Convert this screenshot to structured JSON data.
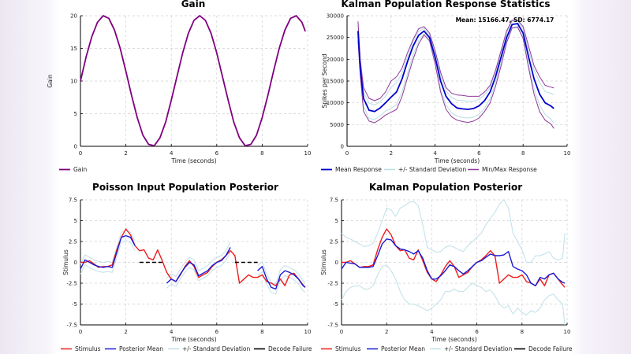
{
  "chart_data": [
    {
      "type": "line",
      "title": "Gain",
      "xlabel": "Time (seconds)",
      "ylabel": "Gain",
      "xlim": [
        0,
        10
      ],
      "ylim": [
        0,
        20
      ],
      "xticks": [
        "0",
        "2",
        "4",
        "6",
        "8",
        "10"
      ],
      "yticks": [
        "0",
        "5",
        "10",
        "15",
        "20"
      ],
      "grid": true,
      "legend": "bottom-left",
      "x": [
        0,
        0.25,
        0.5,
        0.75,
        1,
        1.25,
        1.5,
        1.75,
        2,
        2.25,
        2.5,
        2.75,
        3,
        3.25,
        3.5,
        3.75,
        4,
        4.25,
        4.5,
        4.75,
        5,
        5.25,
        5.5,
        5.75,
        6,
        6.25,
        6.5,
        6.75,
        7,
        7.25,
        7.5,
        7.75,
        8,
        8.25,
        8.5,
        8.75,
        9,
        9.25,
        9.5,
        9.75,
        9.9
      ],
      "series": [
        {
          "name": "Gain",
          "color": "#800080",
          "width": 1.8,
          "y": [
            10,
            13.7,
            16.8,
            19.0,
            20.0,
            19.6,
            17.8,
            15.0,
            11.5,
            7.8,
            4.4,
            1.7,
            0.3,
            0.1,
            1.3,
            3.7,
            7.1,
            10.7,
            14.3,
            17.3,
            19.3,
            20.0,
            19.3,
            17.3,
            14.3,
            10.7,
            7.1,
            3.7,
            1.3,
            0.1,
            0.3,
            1.7,
            4.4,
            7.8,
            11.5,
            15.0,
            17.8,
            19.6,
            20.0,
            19.0,
            17.6
          ]
        }
      ]
    },
    {
      "type": "line",
      "title": "Kalman Population Response Statistics",
      "xlabel": "Time (seconds)",
      "ylabel": "Spikes per Second",
      "annotation": "Mean: 15166.47, SD: 6774.17",
      "xlim": [
        0,
        10
      ],
      "ylim": [
        0,
        30000
      ],
      "xticks": [
        "0",
        "2",
        "4",
        "6",
        "8",
        "10"
      ],
      "yticks": [
        "0",
        "5000",
        "10000",
        "15000",
        "20000",
        "25000",
        "30000"
      ],
      "grid": true,
      "legend": "bottom",
      "x": [
        0.5,
        0.6,
        0.75,
        1,
        1.25,
        1.5,
        1.75,
        2,
        2.25,
        2.5,
        2.75,
        3,
        3.25,
        3.5,
        3.75,
        4,
        4.25,
        4.5,
        4.75,
        5,
        5.25,
        5.5,
        5.75,
        6,
        6.25,
        6.5,
        6.75,
        7,
        7.25,
        7.5,
        7.75,
        8,
        8.25,
        8.5,
        8.75,
        9,
        9.25,
        9.4
      ],
      "series": [
        {
          "name": "Mean Response",
          "color": "#0000cc",
          "width": 1.8,
          "y": [
            26500,
            18000,
            11000,
            8300,
            8000,
            8800,
            10000,
            11300,
            12500,
            15500,
            19500,
            23000,
            25500,
            26500,
            25000,
            20500,
            15000,
            11500,
            9800,
            8800,
            8600,
            8500,
            8700,
            9300,
            10500,
            12500,
            16000,
            20500,
            25000,
            28000,
            28200,
            26000,
            20500,
            15500,
            12000,
            10000,
            9300,
            8700
          ]
        },
        {
          "name": "+/- Standard Deviation",
          "color": "#b8dde3",
          "width": 1,
          "upper": [
            27800,
            19300,
            12500,
            9900,
            9500,
            10200,
            11500,
            13600,
            14600,
            16800,
            20600,
            24000,
            26400,
            27100,
            25600,
            21400,
            16200,
            12700,
            11200,
            10600,
            10500,
            10300,
            10400,
            10800,
            11800,
            13500,
            17000,
            21500,
            26000,
            28700,
            28700,
            27000,
            22000,
            17500,
            14700,
            12600,
            12200,
            11800
          ],
          "lower": [
            25300,
            16800,
            9200,
            6400,
            6200,
            7000,
            8100,
            8700,
            9600,
            12600,
            16800,
            21000,
            24200,
            25900,
            24500,
            19400,
            13200,
            9500,
            7700,
            6900,
            6600,
            6500,
            6700,
            7400,
            8700,
            11000,
            14700,
            19300,
            24200,
            27300,
            27500,
            25000,
            18700,
            13200,
            9500,
            7300,
            6300,
            5300
          ]
        },
        {
          "name": "Min/Max Response",
          "color": "#8e3a9a",
          "width": 1,
          "upper": [
            28700,
            20000,
            13500,
            11000,
            10500,
            11000,
            12500,
            15000,
            16000,
            18000,
            21500,
            24500,
            27000,
            27500,
            26000,
            22000,
            17000,
            13500,
            12200,
            11800,
            11700,
            11500,
            11500,
            11500,
            12500,
            14000,
            17500,
            22000,
            26500,
            29000,
            29000,
            27500,
            23000,
            18500,
            16000,
            14000,
            13600,
            13400
          ],
          "lower": [
            24300,
            16500,
            8000,
            5800,
            5400,
            6200,
            7200,
            7800,
            8500,
            11500,
            15800,
            20000,
            23500,
            25600,
            24200,
            19000,
            12500,
            8500,
            6800,
            6000,
            5700,
            5500,
            5800,
            6500,
            8000,
            10000,
            13800,
            18500,
            23800,
            27200,
            27400,
            24800,
            18000,
            12000,
            8000,
            6000,
            5200,
            4100
          ]
        }
      ]
    },
    {
      "type": "line",
      "title": "Poisson Input Population Posterior",
      "xlabel": "Time (seconds)",
      "ylabel": "Stimulus",
      "xlim": [
        0,
        10
      ],
      "ylim": [
        -7.5,
        7.5
      ],
      "xticks": [
        "0",
        "2",
        "4",
        "6",
        "8",
        "10"
      ],
      "yticks": [
        "-7.5",
        "-5",
        "-2.5",
        "0",
        "2.5",
        "5",
        "7.5"
      ],
      "grid": true,
      "legend": "bottom",
      "x": [
        0,
        0.2,
        0.4,
        0.6,
        0.8,
        1,
        1.2,
        1.4,
        1.6,
        1.8,
        2,
        2.2,
        2.4,
        2.6,
        2.8,
        3,
        3.2,
        3.4,
        3.6,
        3.8,
        4,
        4.2,
        4.4,
        4.6,
        4.8,
        5,
        5.2,
        5.4,
        5.6,
        5.8,
        6,
        6.2,
        6.4,
        6.6,
        6.8,
        7,
        7.2,
        7.4,
        7.6,
        7.8,
        8,
        8.2,
        8.4,
        8.6,
        8.8,
        9,
        9.2,
        9.4,
        9.6,
        9.8,
        9.9
      ],
      "series": [
        {
          "name": "Stimulus",
          "color": "#ee1c1c",
          "width": 1.4,
          "y": [
            0,
            0,
            0.2,
            -0.2,
            -0.6,
            -0.5,
            -0.5,
            -0.3,
            1.5,
            3.0,
            4.0,
            3.3,
            2.0,
            1.4,
            1.5,
            0.5,
            0.3,
            1.5,
            0.2,
            -1.2,
            -2.0,
            -2.3,
            -1.5,
            -0.5,
            0.2,
            -0.5,
            -1.8,
            -1.5,
            -1.2,
            -0.5,
            0,
            0.3,
            0.8,
            1.4,
            0.8,
            -2.5,
            -2.0,
            -1.5,
            -1.8,
            -1.8,
            -1.5,
            -2.3,
            -2.5,
            -2.8,
            -2.0,
            -2.8,
            -1.5,
            -1.3,
            -2.0,
            -2.7,
            -3.0
          ]
        },
        {
          "name": "Posterior Mean",
          "color": "#1a1ad6",
          "width": 1.4,
          "y": [
            -0.8,
            0.3,
            0,
            -0.3,
            -0.5,
            -0.6,
            -0.5,
            -0.6,
            1.2,
            3.0,
            3.2,
            3.0,
            2.0,
            null,
            null,
            null,
            null,
            null,
            null,
            -2.5,
            -2.0,
            -2.3,
            -1.4,
            -0.6,
            0,
            -0.3,
            -1.6,
            -1.3,
            -1.0,
            -0.4,
            0,
            0.2,
            0.8,
            1.8,
            null,
            null,
            null,
            null,
            null,
            -1.0,
            -0.5,
            -2.0,
            -3.0,
            -3.2,
            -1.5,
            -1.0,
            -1.2,
            -1.5,
            -2.0,
            -2.8,
            -3.0
          ]
        },
        {
          "name": "+/- Standard Deviation",
          "color": "#bfe0e8",
          "width": 1,
          "std_of": 1,
          "std": 0.6
        },
        {
          "name": "Decode Failure",
          "color": "#000000",
          "width": 1.6,
          "dashed": true,
          "segments": [
            [
              2.6,
              3.6
            ],
            [
              6.8,
              7.8
            ]
          ],
          "level": 0
        }
      ]
    },
    {
      "type": "line",
      "title": "Kalman Population Posterior",
      "xlabel": "Time (seconds)",
      "ylabel": "Stimulus",
      "xlim": [
        0,
        10
      ],
      "ylim": [
        -7.5,
        7.5
      ],
      "xticks": [
        "0",
        "2",
        "4",
        "6",
        "8",
        "10"
      ],
      "yticks": [
        "-7.5",
        "-5",
        "-2.5",
        "0",
        "2.5",
        "5",
        "7.5"
      ],
      "grid": true,
      "legend": "bottom",
      "x": [
        0,
        0.2,
        0.4,
        0.6,
        0.8,
        1,
        1.2,
        1.4,
        1.6,
        1.8,
        2,
        2.2,
        2.4,
        2.6,
        2.8,
        3,
        3.2,
        3.4,
        3.6,
        3.8,
        4,
        4.2,
        4.4,
        4.6,
        4.8,
        5,
        5.2,
        5.4,
        5.6,
        5.8,
        6,
        6.2,
        6.4,
        6.6,
        6.8,
        7,
        7.2,
        7.4,
        7.6,
        7.8,
        8,
        8.2,
        8.4,
        8.6,
        8.8,
        9,
        9.2,
        9.4,
        9.6,
        9.8,
        9.9
      ],
      "series": [
        {
          "name": "Stimulus",
          "color": "#ee1c1c",
          "width": 1.4,
          "y": [
            0,
            0,
            0.2,
            -0.2,
            -0.6,
            -0.5,
            -0.5,
            -0.3,
            1.5,
            3.0,
            4.0,
            3.3,
            2.0,
            1.4,
            1.5,
            0.5,
            0.3,
            1.5,
            0.2,
            -1.2,
            -2.0,
            -2.3,
            -1.5,
            -0.5,
            0.2,
            -0.5,
            -1.8,
            -1.5,
            -1.2,
            -0.5,
            0,
            0.3,
            0.8,
            1.4,
            0.8,
            -2.5,
            -2.0,
            -1.5,
            -1.8,
            -1.8,
            -1.5,
            -2.3,
            -2.5,
            -2.8,
            -2.0,
            -2.8,
            -1.5,
            -1.3,
            -2.0,
            -2.7,
            -3.0
          ]
        },
        {
          "name": "Posterior Mean",
          "color": "#1a1ad6",
          "width": 1.4,
          "y": [
            -0.8,
            0,
            -0.1,
            -0.2,
            -0.6,
            -0.6,
            -0.6,
            -0.5,
            0.8,
            2.2,
            2.8,
            2.7,
            2.0,
            1.6,
            1.5,
            1.3,
            1.0,
            1.4,
            0.5,
            -1.0,
            -2.0,
            -2.0,
            -1.6,
            -1.0,
            -0.3,
            -0.5,
            -1.0,
            -1.4,
            -1.0,
            -0.5,
            0,
            0.2,
            0.6,
            1.0,
            0.8,
            0.8,
            0.9,
            1.3,
            -0.5,
            -0.8,
            -1.0,
            -1.5,
            -2.5,
            -2.8,
            -1.8,
            -2.0,
            -1.5,
            -1.3,
            -2.0,
            -2.4,
            -2.5
          ]
        },
        {
          "name": "+/- Standard Deviation",
          "color": "#bfe0e8",
          "width": 1,
          "upper": [
            3.5,
            3.0,
            2.8,
            2.5,
            2.2,
            1.9,
            2.0,
            2.3,
            3.5,
            5.0,
            6.5,
            6.3,
            5.5,
            6.5,
            6.8,
            7.2,
            7.3,
            6.8,
            4.5,
            1.8,
            1.5,
            1.2,
            1.3,
            1.8,
            2.0,
            1.8,
            1.5,
            1.3,
            2.0,
            2.5,
            3.0,
            3.5,
            4.5,
            5.3,
            6.0,
            7.0,
            7.5,
            6.5,
            3.5,
            2.5,
            1.5,
            0,
            0,
            0.8,
            0.8,
            1.0,
            1.3,
            0.5,
            0.3,
            0.5,
            3.5
          ],
          "lower": [
            -4.5,
            -3.5,
            -3.0,
            -2.8,
            -2.8,
            -3.2,
            -3.2,
            -2.8,
            -1.5,
            -0.5,
            -0.3,
            -1.0,
            -2.0,
            -3.5,
            -4.5,
            -5.0,
            -5.0,
            -5.2,
            -5.5,
            -5.8,
            -5.5,
            -5.0,
            -4.5,
            -3.5,
            -3.5,
            -3.2,
            -3.5,
            -3.5,
            -3.0,
            -2.5,
            -2.8,
            -3.0,
            -3.5,
            -3.3,
            -4.0,
            -5.0,
            -5.5,
            -5.2,
            -6.2,
            -5.5,
            -6.0,
            -6.3,
            -5.8,
            -6.0,
            -5.5,
            -4.5,
            -4.0,
            -3.8,
            -4.5,
            -5.0,
            -7.5
          ]
        },
        {
          "name": "Decode Failure",
          "color": "#000000",
          "width": 1.6,
          "segments": []
        }
      ]
    }
  ]
}
